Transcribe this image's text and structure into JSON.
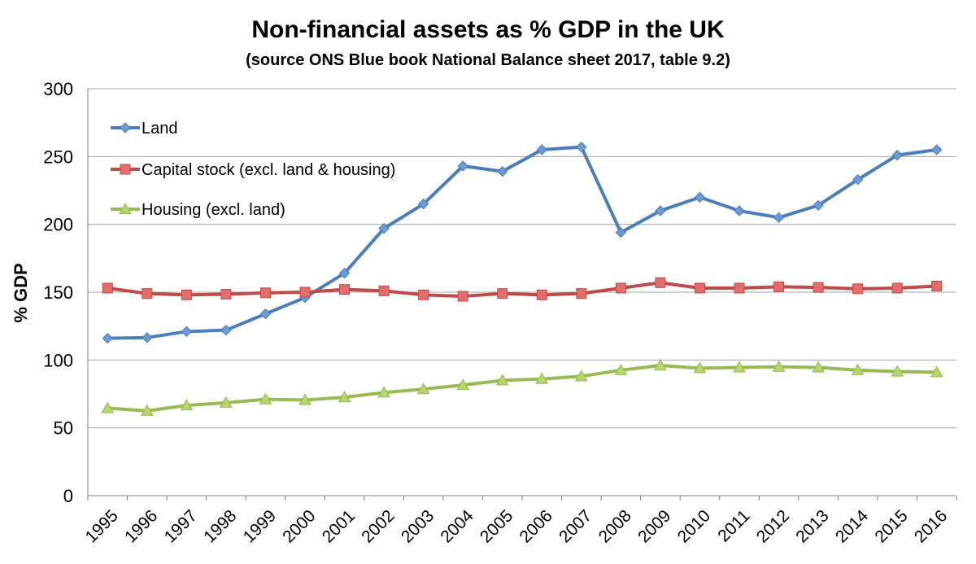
{
  "chart_data": {
    "type": "line",
    "title": "Non-financial assets as % GDP in the UK",
    "subtitle": "(source ONS Blue book National Balance sheet 2017, table 9.2)",
    "xlabel": "",
    "ylabel": "% GDP",
    "ylim": [
      0,
      300
    ],
    "yticks": [
      0,
      50,
      100,
      150,
      200,
      250,
      300
    ],
    "grid": true,
    "legend_position": "top-left",
    "categories": [
      "1995",
      "1996",
      "1997",
      "1998",
      "1999",
      "2000",
      "2001",
      "2002",
      "2003",
      "2004",
      "2005",
      "2006",
      "2007",
      "2008",
      "2009",
      "2010",
      "2011",
      "2012",
      "2013",
      "2014",
      "2015",
      "2016"
    ],
    "series": [
      {
        "name": "Land",
        "color": "#4a7ebb",
        "marker": "diamond",
        "marker_fill": "#6b9bd2",
        "values": [
          116,
          116.5,
          121,
          122,
          134,
          146,
          164,
          197,
          215,
          243,
          239,
          255,
          257,
          194,
          210,
          220,
          210,
          205,
          214,
          233,
          251,
          255
        ]
      },
      {
        "name": "Capital stock (excl. land & housing)",
        "color": "#be4b48",
        "marker": "square",
        "marker_fill": "#e46c6a",
        "values": [
          153,
          149,
          148,
          148.5,
          149.5,
          150,
          152,
          151,
          148,
          147,
          149,
          148,
          149,
          153,
          157,
          153,
          153,
          154,
          153.5,
          152.5,
          153,
          154.5
        ]
      },
      {
        "name": "Housing (excl. land)",
        "color": "#98b954",
        "marker": "triangle",
        "marker_fill": "#b7d56a",
        "values": [
          64.5,
          62.5,
          66.5,
          68.5,
          71,
          70.5,
          72.5,
          76,
          78.5,
          81.5,
          85,
          86,
          88,
          92.5,
          96,
          94,
          94.5,
          95,
          94.5,
          92.5,
          91.5,
          91
        ]
      }
    ]
  }
}
